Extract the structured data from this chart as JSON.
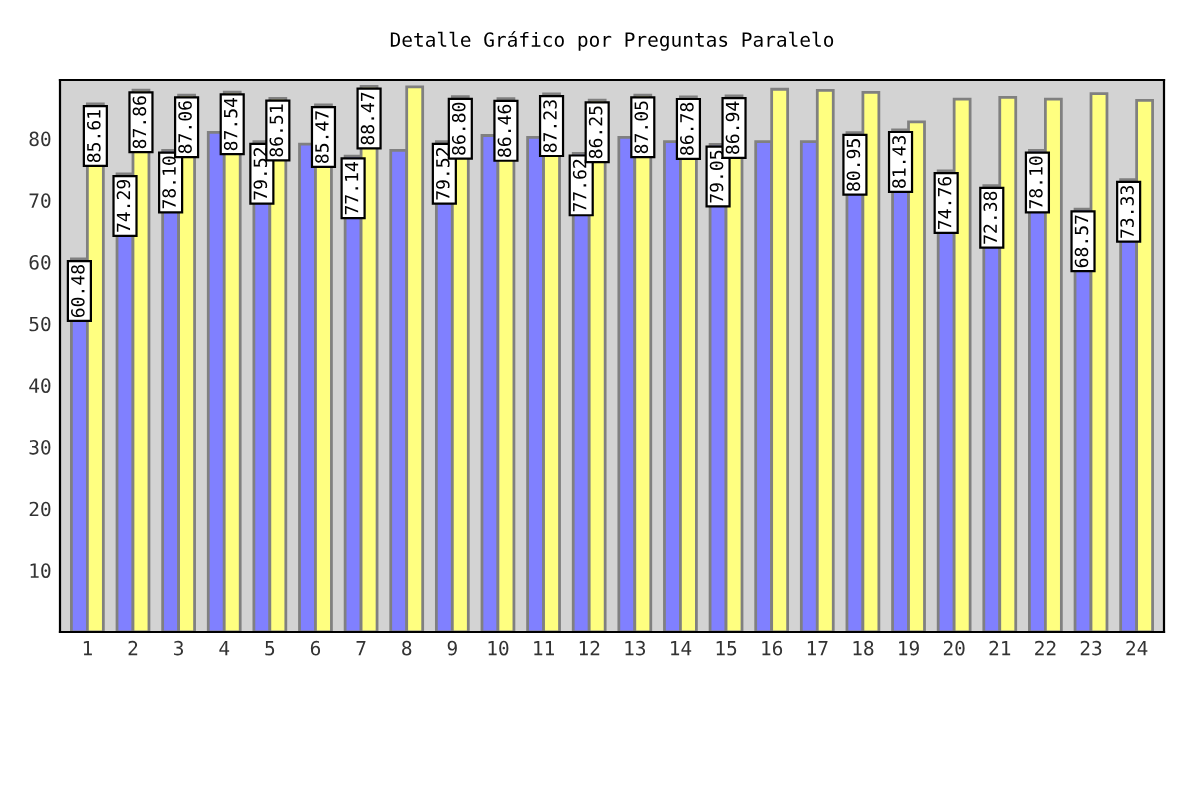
{
  "chart_data": {
    "type": "bar",
    "title": "Detalle Gráfico por Preguntas Paralelo",
    "categories": [
      "1",
      "2",
      "3",
      "4",
      "5",
      "6",
      "7",
      "8",
      "9",
      "10",
      "11",
      "12",
      "13",
      "14",
      "15",
      "16",
      "17",
      "18",
      "19",
      "20",
      "21",
      "22",
      "23",
      "24"
    ],
    "series": [
      {
        "color": "#8080ff",
        "values": [
          60.48,
          74.29,
          78.1,
          81.0,
          79.52,
          79.1,
          77.14,
          78.1,
          79.52,
          80.5,
          80.2,
          77.62,
          80.2,
          79.5,
          79.05,
          79.5,
          79.5,
          80.95,
          81.43,
          74.76,
          72.38,
          78.1,
          68.57,
          73.33
        ],
        "value_labels": [
          "60.48",
          "74.29",
          "78.10",
          null,
          "79.52",
          null,
          "77.14",
          null,
          "79.52",
          null,
          null,
          "77.62",
          null,
          null,
          "79.05",
          null,
          null,
          "80.95",
          "81.43",
          "74.76",
          "72.38",
          "78.10",
          "68.57",
          "73.33"
        ]
      },
      {
        "color": "#ffff80",
        "values": [
          85.61,
          87.86,
          87.06,
          87.54,
          86.51,
          85.47,
          88.47,
          88.4,
          86.8,
          86.46,
          87.23,
          86.25,
          87.05,
          86.78,
          86.94,
          88.0,
          87.8,
          87.5,
          82.7,
          86.4,
          86.7,
          86.4,
          87.3,
          86.2
        ],
        "value_labels": [
          "85.61",
          "87.86",
          "87.06",
          "87.54",
          "86.51",
          "85.47",
          "88.47",
          null,
          "86.80",
          "86.46",
          "87.23",
          "86.25",
          "87.05",
          "86.78",
          "86.94",
          null,
          null,
          null,
          null,
          null,
          null,
          null,
          null,
          null
        ]
      }
    ],
    "ylim": [
      0,
      89.5
    ],
    "yticks": [
      10,
      20,
      30,
      40,
      50,
      60,
      70,
      80
    ],
    "grid": false
  }
}
